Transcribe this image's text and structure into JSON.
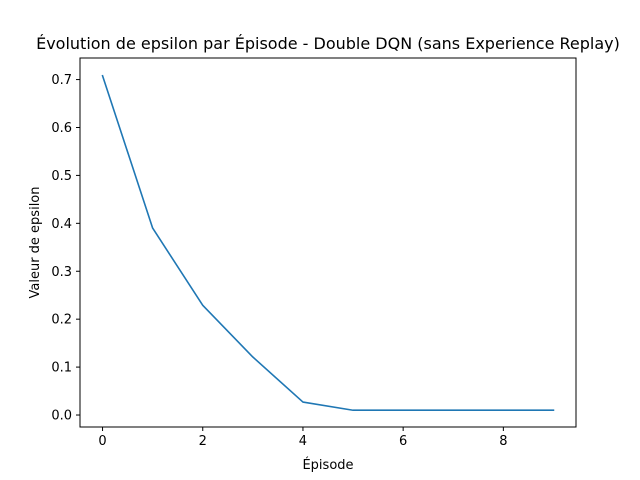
{
  "chart_data": {
    "type": "line",
    "title": "Évolution de epsilon par Épisode - Double DQN (sans Experience Replay)",
    "xlabel": "Épisode",
    "ylabel": "Valeur de epsilon",
    "xlim": [
      -0.45,
      9.45
    ],
    "ylim": [
      -0.025,
      0.745
    ],
    "xticks": [
      0,
      2,
      4,
      6,
      8
    ],
    "xtick_labels": [
      "0",
      "2",
      "4",
      "6",
      "8"
    ],
    "yticks": [
      0.0,
      0.1,
      0.2,
      0.3,
      0.4,
      0.5,
      0.6,
      0.7
    ],
    "ytick_labels": [
      "0.0",
      "0.1",
      "0.2",
      "0.3",
      "0.4",
      "0.5",
      "0.6",
      "0.7"
    ],
    "grid": false,
    "series": [
      {
        "color": "#1f77b4",
        "x": [
          0,
          1,
          2,
          3,
          4,
          5,
          6,
          7,
          8,
          9
        ],
        "values": [
          0.708,
          0.39,
          0.229,
          0.121,
          0.027,
          0.01,
          0.01,
          0.01,
          0.01,
          0.01
        ]
      }
    ]
  }
}
